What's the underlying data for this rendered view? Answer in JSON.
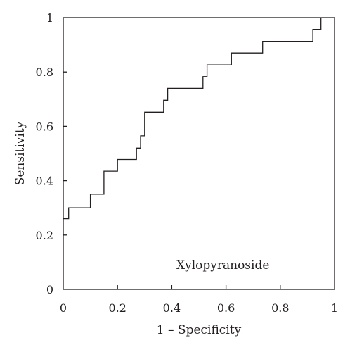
{
  "chart_data": {
    "type": "line",
    "title": "",
    "xlabel": "1 – Specificity",
    "ylabel": "Sensitivity",
    "xlim": [
      0,
      1
    ],
    "ylim": [
      0,
      1
    ],
    "x_ticks": [
      "0",
      "0.2",
      "0.4",
      "0.6",
      "0.8",
      "1"
    ],
    "y_ticks": [
      "0",
      "0.2",
      "0.4",
      "0.6",
      "0.8",
      "1"
    ],
    "annotation": "Xylopyranoside",
    "grid": false,
    "legend": "none",
    "series": [
      {
        "color": "#231f20",
        "step": true,
        "points": [
          [
            0.0,
            0.26
          ],
          [
            0.02,
            0.26
          ],
          [
            0.02,
            0.3
          ],
          [
            0.1,
            0.3
          ],
          [
            0.1,
            0.35
          ],
          [
            0.15,
            0.35
          ],
          [
            0.15,
            0.435
          ],
          [
            0.2,
            0.435
          ],
          [
            0.2,
            0.478
          ],
          [
            0.27,
            0.478
          ],
          [
            0.27,
            0.52
          ],
          [
            0.285,
            0.52
          ],
          [
            0.285,
            0.565
          ],
          [
            0.3,
            0.565
          ],
          [
            0.3,
            0.652
          ],
          [
            0.37,
            0.652
          ],
          [
            0.37,
            0.696
          ],
          [
            0.385,
            0.696
          ],
          [
            0.385,
            0.74
          ],
          [
            0.515,
            0.74
          ],
          [
            0.515,
            0.783
          ],
          [
            0.53,
            0.783
          ],
          [
            0.53,
            0.826
          ],
          [
            0.62,
            0.826
          ],
          [
            0.62,
            0.87
          ],
          [
            0.735,
            0.87
          ],
          [
            0.735,
            0.913
          ],
          [
            0.92,
            0.913
          ],
          [
            0.92,
            0.957
          ],
          [
            0.95,
            0.957
          ],
          [
            0.95,
            1.0
          ]
        ]
      }
    ]
  }
}
